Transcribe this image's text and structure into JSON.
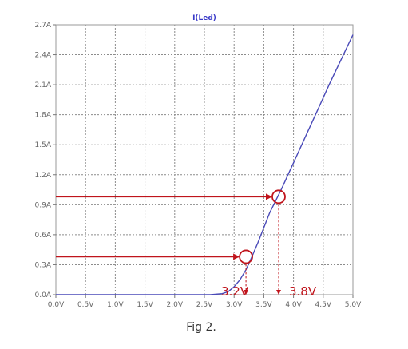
{
  "chart_data": {
    "type": "line",
    "title": "I(Led)",
    "xlim": [
      0,
      5
    ],
    "ylim": [
      0,
      2.7
    ],
    "x_ticks": [
      0,
      0.5,
      1,
      1.5,
      2,
      2.5,
      3,
      3.5,
      4,
      4.5,
      5
    ],
    "x_tick_labels": [
      "0.0V",
      "0.5V",
      "1.0V",
      "1.5V",
      "2.0V",
      "2.5V",
      "3.0V",
      "3.5V",
      "4.0V",
      "4.5V",
      "5.0V"
    ],
    "y_ticks": [
      0,
      0.3,
      0.6,
      0.9,
      1.2,
      1.5,
      1.8,
      2.1,
      2.4,
      2.7
    ],
    "y_tick_labels": [
      "0.0A",
      "0.3A",
      "0.6A",
      "0.9A",
      "1.2A",
      "1.5A",
      "1.8A",
      "2.1A",
      "2.4A",
      "2.7A"
    ],
    "grid": true,
    "series": [
      {
        "x": [
          0,
          2.6,
          2.8,
          2.9,
          3.0,
          3.1,
          3.2,
          3.3,
          3.4,
          3.5,
          3.6,
          3.7,
          3.8,
          4.0,
          4.2,
          4.4,
          4.6,
          4.8,
          5.0
        ],
        "y": [
          0,
          0,
          0.01,
          0.03,
          0.08,
          0.15,
          0.25,
          0.38,
          0.52,
          0.67,
          0.82,
          0.94,
          1.06,
          1.32,
          1.58,
          1.84,
          2.1,
          2.35,
          2.6
        ],
        "color": "#4a4ab8"
      }
    ],
    "annotations": [
      {
        "label": "3.2V",
        "x": 3.2,
        "y": 0.38
      },
      {
        "label": "3.8V",
        "x": 3.75,
        "y": 0.98
      }
    ],
    "annotation_color": "#c0141c"
  },
  "caption": "Fig 2."
}
